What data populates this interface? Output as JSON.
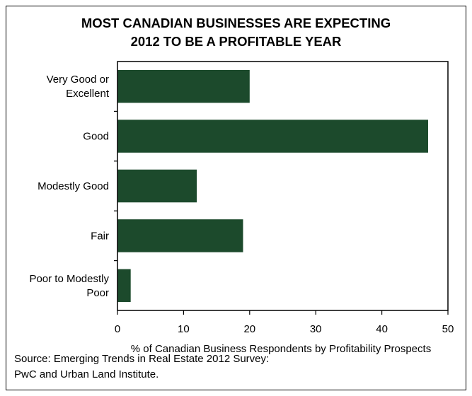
{
  "chart_data": {
    "type": "bar",
    "orientation": "horizontal",
    "title_lines": [
      "MOST CANADIAN BUSINESSES ARE EXPECTING",
      "2012 TO BE A PROFITABLE YEAR"
    ],
    "categories": [
      [
        "Very Good or",
        "Excellent"
      ],
      [
        "Good"
      ],
      [
        "Modestly Good"
      ],
      [
        "Fair"
      ],
      [
        "Poor to Modestly",
        "Poor"
      ]
    ],
    "values": [
      20,
      47,
      12,
      19,
      2
    ],
    "xlabel": "% of Canadian Business Respondents by Profitability Prospects",
    "xlim": [
      0,
      50
    ],
    "xticks": [
      "0",
      "10",
      "20",
      "30",
      "40",
      "50"
    ],
    "bar_color": "#1c4a2c",
    "grid": false
  },
  "source": {
    "line1": "Source: Emerging Trends in Real Estate 2012 Survey:",
    "line2": "PwC and Urban Land Institute."
  }
}
